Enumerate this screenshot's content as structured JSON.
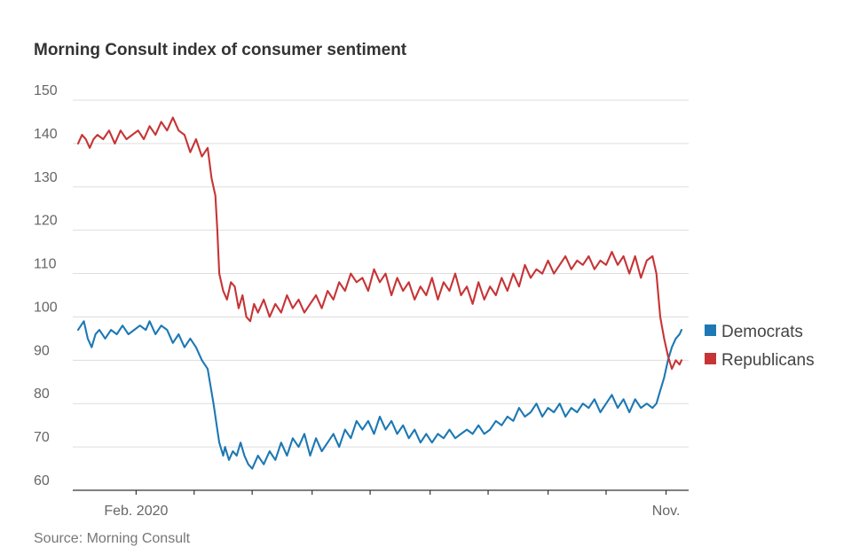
{
  "chart_data": {
    "type": "line",
    "title": "Morning Consult index of consumer sentiment",
    "source": "Source: Morning Consult",
    "xlabel": "",
    "ylabel": "",
    "ylim": [
      60,
      150
    ],
    "yticks": [
      60,
      70,
      80,
      90,
      100,
      110,
      120,
      130,
      140,
      150
    ],
    "x_domain": [
      0,
      312
    ],
    "x_tick_positions": [
      30,
      60,
      90,
      121,
      151,
      182,
      212,
      243,
      273,
      304
    ],
    "x_tick_labels": [
      {
        "x": 30,
        "label": "Feb. 2020"
      },
      {
        "x": 304,
        "label": "Nov."
      }
    ],
    "legend": {
      "placement": "right",
      "entries": [
        "Democrats",
        "Republicans"
      ]
    },
    "series": [
      {
        "name": "Democrats",
        "color": "#1d78b4",
        "x": [
          0,
          3,
          5,
          7,
          9,
          11,
          14,
          17,
          20,
          23,
          26,
          29,
          32,
          35,
          37,
          40,
          43,
          46,
          49,
          52,
          55,
          58,
          61,
          64,
          67,
          70,
          72,
          73,
          75,
          76,
          78,
          80,
          82,
          84,
          86,
          88,
          90,
          93,
          96,
          99,
          102,
          105,
          108,
          111,
          114,
          117,
          120,
          123,
          126,
          129,
          132,
          135,
          138,
          141,
          144,
          147,
          150,
          153,
          156,
          159,
          162,
          165,
          168,
          171,
          174,
          177,
          180,
          183,
          186,
          189,
          192,
          195,
          198,
          201,
          204,
          207,
          210,
          213,
          216,
          219,
          222,
          225,
          228,
          231,
          234,
          237,
          240,
          243,
          246,
          249,
          252,
          255,
          258,
          261,
          264,
          267,
          270,
          273,
          276,
          279,
          282,
          285,
          288,
          291,
          294,
          297,
          299,
          301,
          303,
          305,
          307,
          309,
          311,
          312
        ],
        "values": [
          97,
          99,
          95,
          93,
          96,
          97,
          95,
          97,
          96,
          98,
          96,
          97,
          98,
          97,
          99,
          96,
          98,
          97,
          94,
          96,
          93,
          95,
          93,
          90,
          88,
          80,
          74,
          71,
          68,
          70,
          67,
          69,
          68,
          71,
          68,
          66,
          65,
          68,
          66,
          69,
          67,
          71,
          68,
          72,
          70,
          73,
          68,
          72,
          69,
          71,
          73,
          70,
          74,
          72,
          76,
          74,
          76,
          73,
          77,
          74,
          76,
          73,
          75,
          72,
          74,
          71,
          73,
          71,
          73,
          72,
          74,
          72,
          73,
          74,
          73,
          75,
          73,
          74,
          76,
          75,
          77,
          76,
          79,
          77,
          78,
          80,
          77,
          79,
          78,
          80,
          77,
          79,
          78,
          80,
          79,
          81,
          78,
          80,
          82,
          79,
          81,
          78,
          81,
          79,
          80,
          79,
          80,
          83,
          86,
          90,
          93,
          95,
          96,
          97
        ]
      },
      {
        "name": "Republicans",
        "color": "#c73436",
        "x": [
          0,
          2,
          4,
          6,
          8,
          10,
          13,
          16,
          19,
          22,
          25,
          28,
          31,
          34,
          37,
          40,
          43,
          46,
          49,
          52,
          55,
          58,
          61,
          64,
          67,
          69,
          71,
          72,
          73,
          75,
          77,
          79,
          81,
          83,
          85,
          87,
          89,
          91,
          93,
          96,
          99,
          102,
          105,
          108,
          111,
          114,
          117,
          120,
          123,
          126,
          129,
          132,
          135,
          138,
          141,
          144,
          147,
          150,
          153,
          156,
          159,
          162,
          165,
          168,
          171,
          174,
          177,
          180,
          183,
          186,
          189,
          192,
          195,
          198,
          201,
          204,
          207,
          210,
          213,
          216,
          219,
          222,
          225,
          228,
          231,
          234,
          237,
          240,
          243,
          246,
          249,
          252,
          255,
          258,
          261,
          264,
          267,
          270,
          273,
          276,
          279,
          282,
          285,
          288,
          291,
          294,
          297,
          299,
          301,
          303,
          305,
          307,
          309,
          311,
          312
        ],
        "values": [
          140,
          142,
          141,
          139,
          141,
          142,
          141,
          143,
          140,
          143,
          141,
          142,
          143,
          141,
          144,
          142,
          145,
          143,
          146,
          143,
          142,
          138,
          141,
          137,
          139,
          132,
          128,
          120,
          110,
          106,
          104,
          108,
          107,
          102,
          105,
          100,
          99,
          103,
          101,
          104,
          100,
          103,
          101,
          105,
          102,
          104,
          101,
          103,
          105,
          102,
          106,
          104,
          108,
          106,
          110,
          108,
          109,
          106,
          111,
          108,
          110,
          105,
          109,
          106,
          108,
          104,
          107,
          105,
          109,
          104,
          108,
          106,
          110,
          105,
          107,
          103,
          108,
          104,
          107,
          105,
          109,
          106,
          110,
          107,
          112,
          109,
          111,
          110,
          113,
          110,
          112,
          114,
          111,
          113,
          112,
          114,
          111,
          113,
          112,
          115,
          112,
          114,
          110,
          114,
          109,
          113,
          114,
          110,
          100,
          95,
          91,
          88,
          90,
          89,
          90
        ]
      }
    ]
  }
}
